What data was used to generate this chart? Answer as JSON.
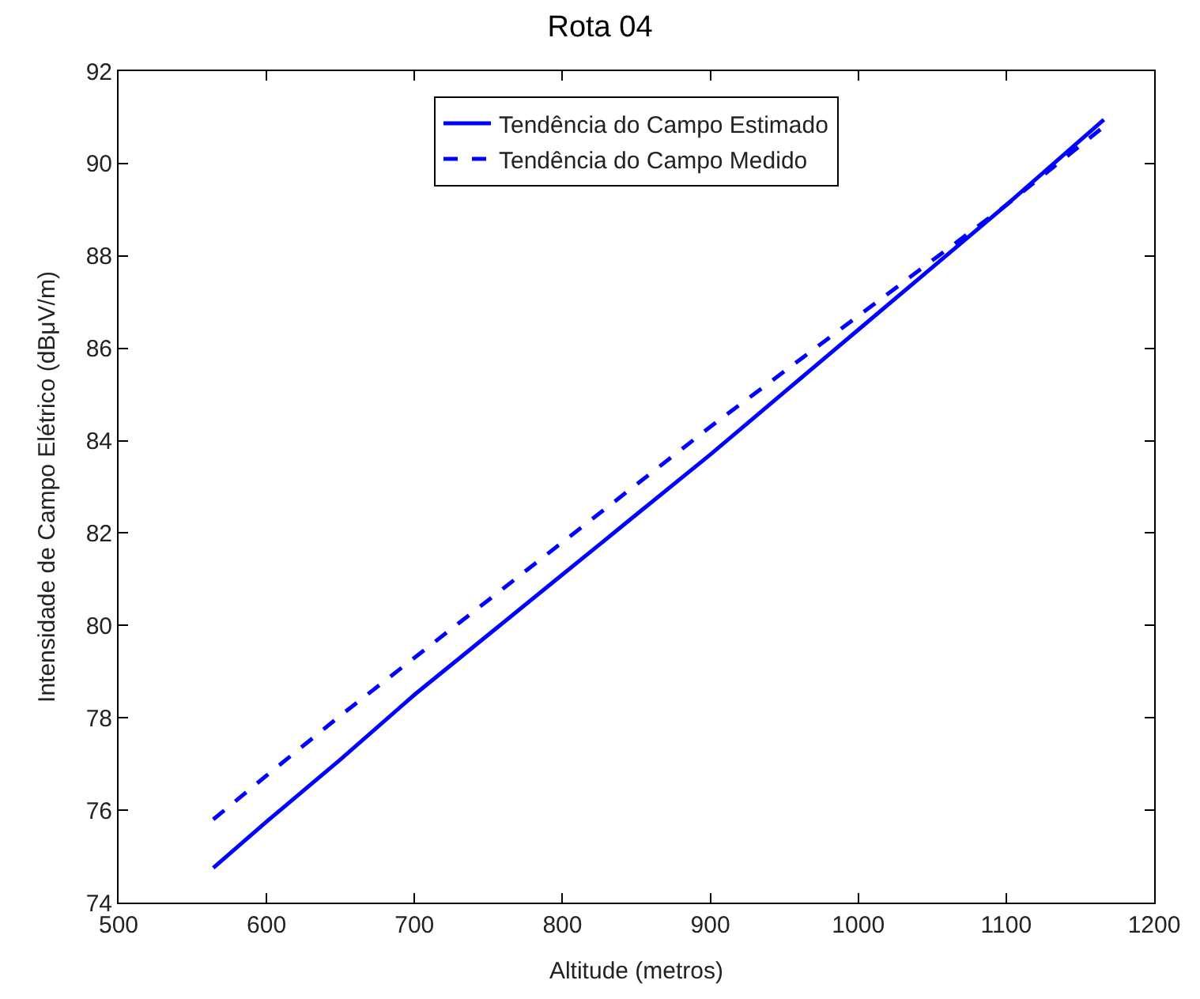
{
  "chart_data": {
    "type": "line",
    "title": "Rota 04",
    "xlabel": "Altitude (metros)",
    "ylabel": "Intensidade de Campo Elétrico (dBμV/m)",
    "x": [
      564,
      600,
      650,
      700,
      750,
      800,
      850,
      900,
      950,
      1000,
      1050,
      1100,
      1166
    ],
    "series": [
      {
        "name": "Tendência do Campo Estimado",
        "color": "#0000ff",
        "line_style": "solid",
        "values": [
          74.75,
          75.75,
          77.1,
          78.5,
          79.8,
          81.1,
          82.4,
          83.7,
          85.05,
          86.4,
          87.75,
          89.1,
          90.95
        ]
      },
      {
        "name": "Tendência do Campo Medido",
        "color": "#0000ff",
        "line_style": "dashed",
        "values": [
          75.8,
          76.75,
          78.05,
          79.3,
          80.55,
          81.8,
          83.05,
          84.3,
          85.5,
          86.7,
          87.9,
          89.1,
          90.8
        ]
      }
    ],
    "xlim": [
      500,
      1200
    ],
    "xticks": [
      500,
      600,
      700,
      800,
      900,
      1000,
      1100,
      1200
    ],
    "ylim": [
      74,
      92
    ],
    "yticks": [
      74,
      76,
      78,
      80,
      82,
      84,
      86,
      88,
      90,
      92
    ],
    "legend": "top",
    "marker": "none"
  }
}
